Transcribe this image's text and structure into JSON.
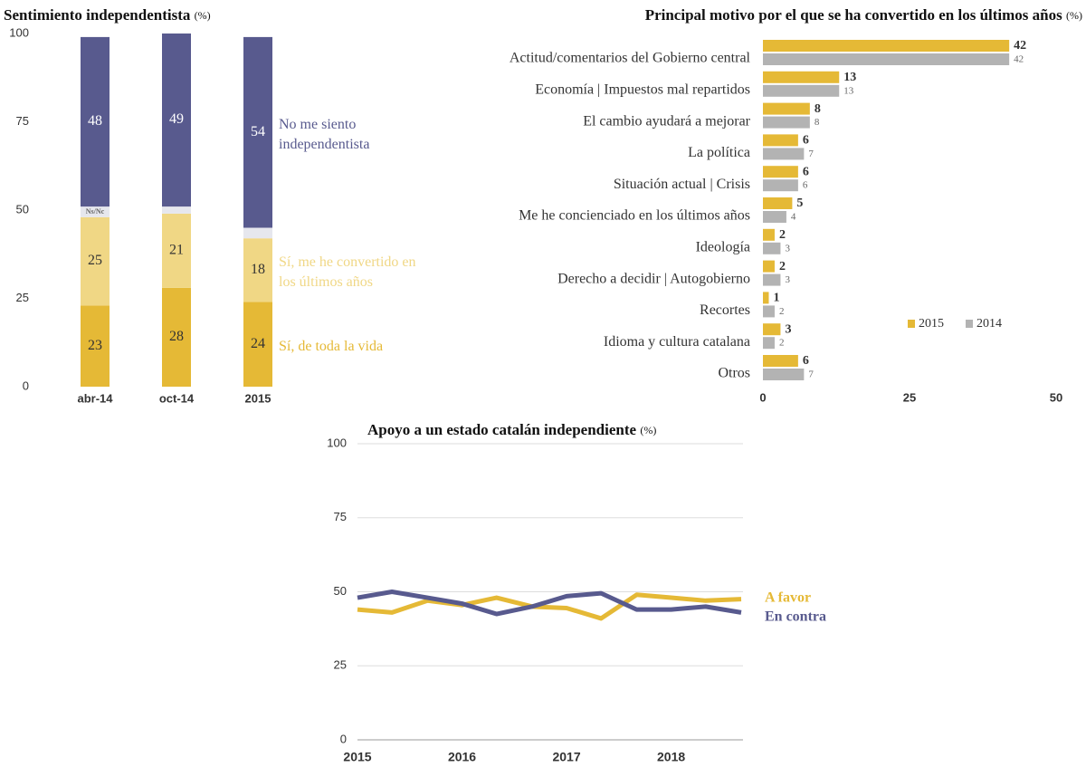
{
  "chart_data": [
    {
      "type": "stacked_bar",
      "title": "Sentimiento independentista",
      "title_unit": "(%)",
      "categories": [
        "abr-14",
        "oct-14",
        "2015"
      ],
      "series": [
        {
          "name": "Sí, de toda la vida",
          "color": "#e5b936",
          "values": [
            23,
            28,
            24
          ]
        },
        {
          "name": "Sí, me he convertido en los últimos años",
          "color": "#f0d785",
          "values": [
            25,
            21,
            18
          ]
        },
        {
          "name": "Ns/Nc",
          "color": "#e6e7ee",
          "values": [
            3,
            2,
            3
          ]
        },
        {
          "name": "No me siento independentista",
          "color": "#585a8e",
          "values": [
            48,
            49,
            54
          ]
        }
      ],
      "ylim": [
        0,
        100
      ],
      "yticks": [
        0,
        25,
        50,
        75,
        100
      ]
    },
    {
      "type": "hbar",
      "title": "Principal motivo por el que se ha convertido en los últimos años",
      "title_unit": "(%)",
      "categories": [
        "Actitud/comentarios del Gobierno central",
        "Economía | Impuestos mal repartidos",
        "El cambio ayudará a mejorar",
        "La política",
        "Situación actual | Crisis",
        "Me he concienciado en los últimos años",
        "Ideología",
        "Derecho a decidir | Autogobierno",
        "Recortes",
        "Idioma y cultura catalana",
        "Otros"
      ],
      "series": [
        {
          "name": "2015",
          "color": "#e5b936",
          "values": [
            42,
            13,
            8,
            6,
            6,
            5,
            2,
            2,
            1,
            3,
            6
          ]
        },
        {
          "name": "2014",
          "color": "#b3b3b3",
          "values": [
            42,
            13,
            8,
            7,
            6,
            4,
            3,
            3,
            2,
            2,
            7
          ]
        }
      ],
      "xlim": [
        0,
        50
      ],
      "xticks": [
        0,
        25,
        50
      ]
    },
    {
      "type": "line",
      "title": "Apoyo a un estado catalán independiente",
      "title_unit": "(%)",
      "x": [
        2015,
        2015.33,
        2015.67,
        2016,
        2016.33,
        2016.67,
        2017,
        2017.33,
        2017.67,
        2018,
        2018.33,
        2018.67
      ],
      "series": [
        {
          "name": "A favor",
          "color": "#e5b936",
          "values": [
            44,
            43,
            47,
            45.5,
            48,
            45,
            44.5,
            41,
            49,
            48,
            47,
            47.5
          ]
        },
        {
          "name": "En contra",
          "color": "#585a8e",
          "values": [
            48,
            50,
            48,
            46,
            42.5,
            45,
            48.5,
            49.5,
            44,
            44,
            45,
            43
          ]
        }
      ],
      "xlim": [
        2015,
        2018.67
      ],
      "xticks": [
        2015,
        2016,
        2017,
        2018
      ],
      "ylim": [
        0,
        100
      ],
      "yticks": [
        0,
        25,
        50,
        75,
        100
      ],
      "grid": true
    }
  ]
}
